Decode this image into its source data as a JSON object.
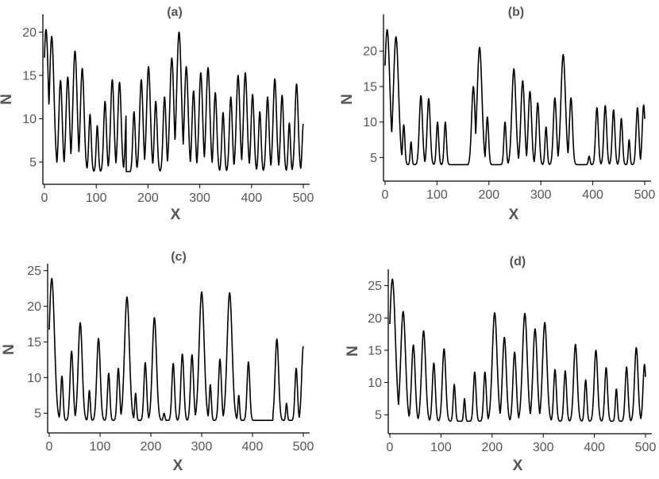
{
  "chart_data": [
    {
      "type": "line",
      "title": "(a)",
      "xlabel": "X",
      "ylabel": "N",
      "xlim": [
        0,
        500
      ],
      "ylim": [
        2.8,
        21.5
      ],
      "xticks": [
        0,
        100,
        200,
        300,
        400,
        500
      ],
      "yticks": [
        5,
        10,
        15,
        20
      ],
      "baseline": 3.9,
      "peaks": [
        [
          3,
          20.3
        ],
        [
          14,
          19.5
        ],
        [
          31,
          14.4
        ],
        [
          45,
          14.8
        ],
        [
          59,
          17.8
        ],
        [
          73,
          15.8
        ],
        [
          88,
          10.5
        ],
        [
          102,
          9.2
        ],
        [
          117,
          12.0
        ],
        [
          131,
          14.5
        ],
        [
          145,
          14.2
        ],
        [
          159,
          11.5
        ],
        [
          173,
          10.8
        ],
        [
          187,
          14.5
        ],
        [
          201,
          16.0
        ],
        [
          215,
          12.0
        ],
        [
          232,
          12.5
        ],
        [
          246,
          17.0
        ],
        [
          260,
          20.0
        ],
        [
          274,
          16.0
        ],
        [
          288,
          13.2
        ],
        [
          302,
          15.3
        ],
        [
          316,
          15.9
        ],
        [
          330,
          13.0
        ],
        [
          345,
          10.7
        ],
        [
          360,
          12.5
        ],
        [
          374,
          15.0
        ],
        [
          388,
          15.3
        ],
        [
          402,
          12.8
        ],
        [
          416,
          10.8
        ],
        [
          431,
          12.5
        ],
        [
          445,
          14.6
        ],
        [
          459,
          12.7
        ],
        [
          473,
          9.5
        ],
        [
          487,
          14.0
        ],
        [
          500,
          9.4
        ]
      ],
      "gaps": [
        [
          158,
          166
        ]
      ],
      "x_end": 500
    },
    {
      "type": "line",
      "title": "(b)",
      "xlabel": "X",
      "ylabel": "N",
      "xlim": [
        0,
        500
      ],
      "ylim": [
        2.8,
        24.5
      ],
      "xticks": [
        0,
        100,
        200,
        300,
        400,
        500
      ],
      "yticks": [
        5,
        10,
        15,
        20
      ],
      "baseline": 4.0,
      "peaks": [
        [
          4,
          23.0
        ],
        [
          21,
          22.0
        ],
        [
          36,
          9.6
        ],
        [
          50,
          7.2
        ],
        [
          69,
          13.7
        ],
        [
          84,
          13.3
        ],
        [
          101,
          10.0
        ],
        [
          116,
          10.0
        ],
        [
          170,
          15.0
        ],
        [
          182,
          20.5
        ],
        [
          197,
          10.7
        ],
        [
          231,
          10.0
        ],
        [
          248,
          17.5
        ],
        [
          265,
          15.8
        ],
        [
          279,
          14.3
        ],
        [
          294,
          12.7
        ],
        [
          310,
          9.3
        ],
        [
          327,
          13.4
        ],
        [
          343,
          19.5
        ],
        [
          358,
          13.4
        ],
        [
          393,
          5.2
        ],
        [
          408,
          12.0
        ],
        [
          424,
          12.3
        ],
        [
          440,
          11.7
        ],
        [
          455,
          10.5
        ],
        [
          470,
          7.5
        ],
        [
          486,
          12.0
        ],
        [
          498,
          12.4
        ]
      ],
      "gaps": [
        [
          125,
          160
        ],
        [
          205,
          222
        ],
        [
          370,
          385
        ]
      ],
      "x_end": 500
    },
    {
      "type": "line",
      "title": "(c)",
      "xlabel": "X",
      "ylabel": "N",
      "xlim": [
        0,
        500
      ],
      "ylim": [
        2.8,
        25.3
      ],
      "xticks": [
        0,
        100,
        200,
        300,
        400,
        500
      ],
      "yticks": [
        5,
        10,
        15,
        20,
        25
      ],
      "baseline": 4.0,
      "peaks": [
        [
          5,
          23.9
        ],
        [
          25,
          10.2
        ],
        [
          44,
          13.7
        ],
        [
          61,
          17.7
        ],
        [
          79,
          8.2
        ],
        [
          97,
          15.5
        ],
        [
          117,
          10.6
        ],
        [
          136,
          11.3
        ],
        [
          153,
          21.3
        ],
        [
          170,
          7.8
        ],
        [
          189,
          12.1
        ],
        [
          207,
          18.4
        ],
        [
          226,
          5.0
        ],
        [
          244,
          12.0
        ],
        [
          262,
          13.3
        ],
        [
          281,
          13.2
        ],
        [
          300,
          22.0
        ],
        [
          317,
          9.0
        ],
        [
          336,
          12.6
        ],
        [
          355,
          21.9
        ],
        [
          373,
          7.5
        ],
        [
          392,
          12.2
        ],
        [
          448,
          15.4
        ],
        [
          467,
          6.4
        ],
        [
          486,
          11.3
        ],
        [
          500,
          14.4
        ]
      ],
      "gaps": [
        [
          403,
          440
        ]
      ],
      "x_end": 500
    },
    {
      "type": "line",
      "title": "(d)",
      "xlabel": "X",
      "ylabel": "N",
      "xlim": [
        0,
        500
      ],
      "ylim": [
        2.8,
        26.8
      ],
      "xticks": [
        0,
        100,
        200,
        300,
        400,
        500
      ],
      "yticks": [
        5,
        10,
        15,
        20,
        25
      ],
      "baseline": 4.0,
      "peaks": [
        [
          5,
          26.0
        ],
        [
          26,
          21.0
        ],
        [
          46,
          15.8
        ],
        [
          66,
          18.0
        ],
        [
          86,
          13.0
        ],
        [
          106,
          15.2
        ],
        [
          126,
          9.7
        ],
        [
          146,
          7.5
        ],
        [
          166,
          11.6
        ],
        [
          186,
          11.6
        ],
        [
          205,
          20.8
        ],
        [
          224,
          17.0
        ],
        [
          244,
          14.7
        ],
        [
          264,
          20.7
        ],
        [
          284,
          18.3
        ],
        [
          303,
          19.3
        ],
        [
          323,
          12.0
        ],
        [
          343,
          11.8
        ],
        [
          363,
          15.9
        ],
        [
          383,
          10.4
        ],
        [
          403,
          15.0
        ],
        [
          423,
          12.3
        ],
        [
          443,
          9.0
        ],
        [
          463,
          12.4
        ],
        [
          482,
          15.4
        ],
        [
          498,
          12.8
        ]
      ],
      "gaps": [],
      "x_end": 500
    }
  ]
}
